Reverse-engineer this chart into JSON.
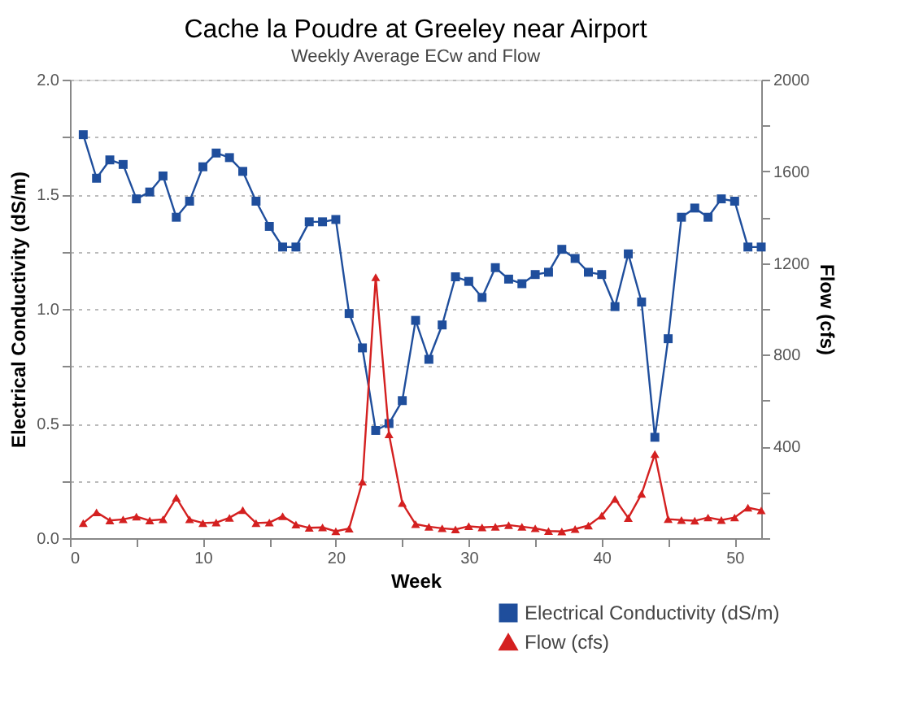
{
  "chart_data": {
    "type": "line",
    "title": "Cache la Poudre at Greeley near Airport",
    "subtitle": "Weekly Average ECw and Flow",
    "xlabel": "Week",
    "ylabel": "Electrical Conductivity (dS/m)",
    "y2label": "Flow (cfs)",
    "x": [
      1,
      2,
      3,
      4,
      5,
      6,
      7,
      8,
      9,
      10,
      11,
      12,
      13,
      14,
      15,
      16,
      17,
      18,
      19,
      20,
      21,
      22,
      23,
      24,
      25,
      26,
      27,
      28,
      29,
      30,
      31,
      32,
      33,
      34,
      35,
      36,
      37,
      38,
      39,
      40,
      41,
      42,
      43,
      44,
      45,
      46,
      47,
      48,
      49,
      50,
      51,
      52
    ],
    "series": [
      {
        "name": "Electrical Conductivity (dS/m)",
        "color": "#1f4e9c",
        "marker": "square",
        "values": [
          1.76,
          1.57,
          1.65,
          1.63,
          1.48,
          1.51,
          1.58,
          1.4,
          1.47,
          1.62,
          1.68,
          1.66,
          1.6,
          1.47,
          1.36,
          1.27,
          1.27,
          1.38,
          1.38,
          1.39,
          0.98,
          0.83,
          0.47,
          0.5,
          0.6,
          0.95,
          0.78,
          0.93,
          1.14,
          1.12,
          1.05,
          1.18,
          1.13,
          1.11,
          1.15,
          1.16,
          1.26,
          1.22,
          1.16,
          1.15,
          1.01,
          1.24,
          1.03,
          0.44,
          0.87,
          1.4,
          1.44,
          1.4,
          1.48,
          1.47,
          1.27,
          1.27
        ]
      },
      {
        "name": "Flow (cfs)",
        "color": "#d42020",
        "marker": "triangle",
        "axis": "y2",
        "values": [
          66,
          113,
          77,
          82,
          94,
          77,
          82,
          176,
          82,
          66,
          68,
          89,
          122,
          66,
          68,
          96,
          59,
          45,
          47,
          30,
          42,
          246,
          1138,
          453,
          153,
          61,
          50,
          43,
          38,
          52,
          47,
          50,
          57,
          50,
          43,
          31,
          29,
          40,
          55,
          98,
          171,
          88,
          193,
          367,
          83,
          79,
          76,
          90,
          79,
          90,
          133,
          121
        ]
      }
    ],
    "xlim": [
      0,
      52
    ],
    "xticks": [
      0,
      {
        "value": 5,
        "label": null
      },
      10,
      {
        "value": 15,
        "label": null
      },
      20,
      {
        "value": 25,
        "label": null
      },
      30,
      {
        "value": 35,
        "label": null
      },
      40,
      {
        "value": 45,
        "label": null
      },
      50
    ],
    "ylim": [
      0,
      2
    ],
    "yticks": [
      {
        "value": 0,
        "label": "0.0"
      },
      {
        "value": 0.25,
        "label": null
      },
      0.5,
      {
        "value": 0.75,
        "label": null
      },
      {
        "value": 1,
        "label": "1.0"
      },
      {
        "value": 1.25,
        "label": null
      },
      1.5,
      {
        "value": 1.75,
        "label": null
      },
      {
        "value": 2,
        "label": "2.0"
      }
    ],
    "y2lim": [
      0,
      2000
    ],
    "y2ticks": [
      {
        "value": 0,
        "label": null
      },
      {
        "value": 200,
        "label": null
      },
      400,
      {
        "value": 600,
        "label": null
      },
      800,
      {
        "value": 1000,
        "label": null
      },
      1200,
      {
        "value": 1400,
        "label": null
      },
      1600,
      {
        "value": 1800,
        "label": null
      },
      2000
    ],
    "grid": "y",
    "legend": "bottom right",
    "line_style": "solid"
  }
}
